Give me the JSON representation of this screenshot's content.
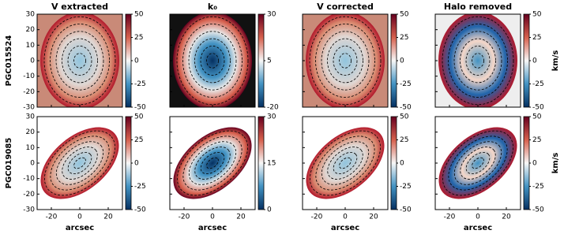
{
  "figure": {
    "columns": [
      "V extracted",
      "k₀",
      "V corrected",
      "Halo removed"
    ],
    "xlabel": "arcsec",
    "xlim": [
      -30,
      30
    ],
    "xticks": [
      -20,
      0,
      20
    ],
    "ylim": [
      -30,
      30
    ],
    "yticks": [
      -30,
      -20,
      -10,
      0,
      10,
      20,
      30
    ],
    "rows": [
      {
        "label": "PGC015524",
        "unit": "km/s",
        "colorbars": [
          {
            "lim": [
              -50,
              50
            ],
            "ticks": [
              -50,
              -25,
              0,
              25,
              50
            ]
          },
          {
            "lim": [
              -20,
              30
            ],
            "ticks": [
              -20,
              5,
              30
            ]
          },
          {
            "lim": [
              -50,
              50
            ],
            "ticks": [
              -50,
              -25,
              0,
              25,
              50
            ]
          },
          {
            "lim": [
              -50,
              50
            ],
            "ticks": [
              -50,
              -25,
              0,
              25,
              50
            ]
          }
        ]
      },
      {
        "label": "PGC019085",
        "unit": "km/s",
        "colorbars": [
          {
            "lim": [
              -50,
              50
            ],
            "ticks": [
              -50,
              -25,
              0,
              25,
              50
            ]
          },
          {
            "lim": [
              0,
              30
            ],
            "ticks": [
              0,
              15,
              30
            ]
          },
          {
            "lim": [
              -50,
              50
            ],
            "ticks": [
              -50,
              -25,
              0,
              25,
              50
            ]
          },
          {
            "lim": [
              -50,
              50
            ],
            "ticks": [
              -50,
              -25,
              0,
              25,
              50
            ]
          }
        ]
      }
    ]
  }
}
